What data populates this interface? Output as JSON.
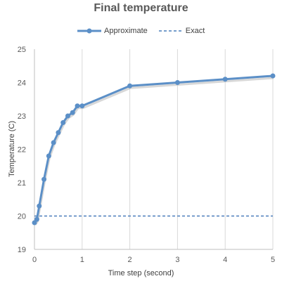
{
  "chart_data": {
    "type": "line",
    "title": "Final temperature",
    "xlabel": "Time step (second)",
    "ylabel": "Temperature (C)",
    "xlim": [
      0,
      5
    ],
    "ylim": [
      19,
      25
    ],
    "x_ticks": [
      "0",
      "1",
      "2",
      "3",
      "4",
      "5"
    ],
    "y_ticks": [
      "19",
      "20",
      "21",
      "22",
      "23",
      "24",
      "25"
    ],
    "grid": "vertical",
    "legend": "top-center",
    "series": [
      {
        "name": "Approximate",
        "style": "solid-markers",
        "color": "#5b8fc7",
        "points": [
          [
            0.0,
            19.8
          ],
          [
            0.05,
            19.9
          ],
          [
            0.1,
            20.3
          ],
          [
            0.2,
            21.1
          ],
          [
            0.3,
            21.8
          ],
          [
            0.4,
            22.2
          ],
          [
            0.5,
            22.5
          ],
          [
            0.6,
            22.8
          ],
          [
            0.7,
            23.0
          ],
          [
            0.8,
            23.1
          ],
          [
            0.9,
            23.3
          ],
          [
            1.0,
            23.3
          ],
          [
            2.0,
            23.9
          ],
          [
            3.0,
            24.0
          ],
          [
            4.0,
            24.1
          ],
          [
            5.0,
            24.2
          ]
        ]
      },
      {
        "name": "Exact",
        "style": "dashed",
        "color": "#4a7ebb",
        "points": [
          [
            0,
            20
          ],
          [
            5,
            20
          ]
        ]
      }
    ]
  }
}
